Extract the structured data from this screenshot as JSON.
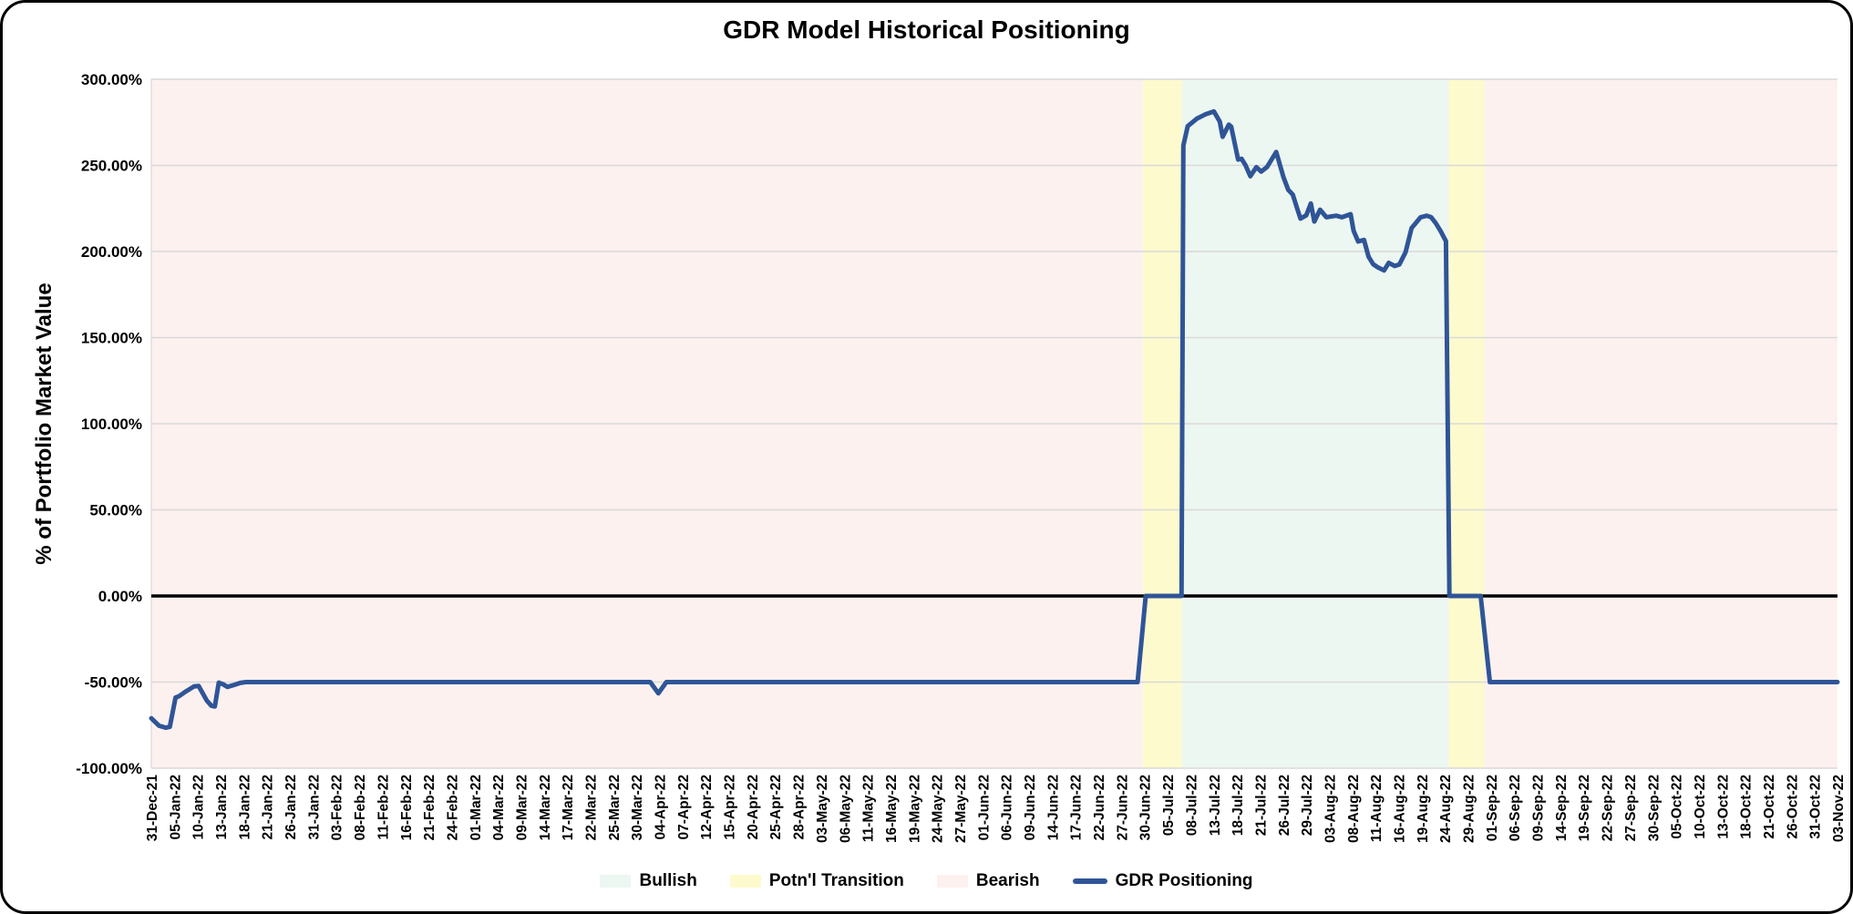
{
  "chart_data": {
    "type": "line",
    "title": "GDR Model Historical Positioning",
    "ylabel": "% of Portfolio Market Value",
    "ylim": [
      -100,
      300
    ],
    "grid": true,
    "legend_position": "bottom-center",
    "y_ticks": [
      {
        "value": 300,
        "label": "300.00%"
      },
      {
        "value": 250,
        "label": "250.00%"
      },
      {
        "value": 200,
        "label": "200.00%"
      },
      {
        "value": 150,
        "label": "150.00%"
      },
      {
        "value": 100,
        "label": "100.00%"
      },
      {
        "value": 50,
        "label": "50.00%"
      },
      {
        "value": 0,
        "label": "0.00%"
      },
      {
        "value": -50,
        "label": "-50.00%"
      },
      {
        "value": -100,
        "label": "-100.00%"
      }
    ],
    "categories": [
      "31-Dec-21",
      "05-Jan-22",
      "10-Jan-22",
      "13-Jan-22",
      "18-Jan-22",
      "21-Jan-22",
      "26-Jan-22",
      "31-Jan-22",
      "03-Feb-22",
      "08-Feb-22",
      "11-Feb-22",
      "16-Feb-22",
      "21-Feb-22",
      "24-Feb-22",
      "01-Mar-22",
      "04-Mar-22",
      "09-Mar-22",
      "14-Mar-22",
      "17-Mar-22",
      "22-Mar-22",
      "25-Mar-22",
      "30-Mar-22",
      "04-Apr-22",
      "07-Apr-22",
      "12-Apr-22",
      "15-Apr-22",
      "20-Apr-22",
      "25-Apr-22",
      "28-Apr-22",
      "03-May-22",
      "06-May-22",
      "11-May-22",
      "16-May-22",
      "19-May-22",
      "24-May-22",
      "27-May-22",
      "01-Jun-22",
      "06-Jun-22",
      "09-Jun-22",
      "14-Jun-22",
      "17-Jun-22",
      "22-Jun-22",
      "27-Jun-22",
      "30-Jun-22",
      "05-Jul-22",
      "08-Jul-22",
      "13-Jul-22",
      "18-Jul-22",
      "21-Jul-22",
      "26-Jul-22",
      "29-Jul-22",
      "03-Aug-22",
      "08-Aug-22",
      "11-Aug-22",
      "16-Aug-22",
      "19-Aug-22",
      "24-Aug-22",
      "29-Aug-22",
      "01-Sep-22",
      "06-Sep-22",
      "09-Sep-22",
      "14-Sep-22",
      "19-Sep-22",
      "22-Sep-22",
      "27-Sep-22",
      "30-Sep-22",
      "05-Oct-22",
      "10-Oct-22",
      "13-Oct-22",
      "18-Oct-22",
      "21-Oct-22",
      "26-Oct-22",
      "31-Oct-22",
      "03-Nov-22"
    ],
    "regions": [
      {
        "name": "Bearish",
        "start": 0,
        "end": 42.92,
        "color": "bearish"
      },
      {
        "name": "Potn'l Transition",
        "start": 42.92,
        "end": 44.62,
        "color": "transition"
      },
      {
        "name": "Bullish",
        "start": 44.62,
        "end": 56.17,
        "color": "bullish"
      },
      {
        "name": "Potn'l Transition",
        "start": 56.17,
        "end": 57.71,
        "color": "transition"
      },
      {
        "name": "Bearish",
        "start": 57.71,
        "end": 73,
        "color": "bearish"
      }
    ],
    "series": [
      {
        "name": "GDR Positioning",
        "color": "#2f5597",
        "points": [
          [
            0,
            -71
          ],
          [
            0.33,
            -75.3
          ],
          [
            0.63,
            -76.5
          ],
          [
            0.8,
            -76
          ],
          [
            1.05,
            -59
          ],
          [
            1.2,
            -58.2
          ],
          [
            1.5,
            -55.4
          ],
          [
            1.85,
            -52.5
          ],
          [
            2.05,
            -52.3
          ],
          [
            2.4,
            -60.7
          ],
          [
            2.6,
            -63.7
          ],
          [
            2.75,
            -64.2
          ],
          [
            2.92,
            -50.3
          ],
          [
            3.1,
            -51.2
          ],
          [
            3.3,
            -52.8
          ],
          [
            3.65,
            -51.4
          ],
          [
            3.85,
            -50.5
          ],
          [
            4.1,
            -50
          ],
          [
            21.6,
            -50
          ],
          [
            21.95,
            -56.5
          ],
          [
            22.3,
            -50
          ],
          [
            42.7,
            -50
          ],
          [
            43.05,
            0
          ],
          [
            44.6,
            0
          ],
          [
            44.68,
            261.5
          ],
          [
            44.87,
            272.8
          ],
          [
            45.27,
            277.2
          ],
          [
            45.66,
            279.8
          ],
          [
            46,
            281.3
          ],
          [
            46.26,
            275.4
          ],
          [
            46.38,
            266.6
          ],
          [
            46.65,
            273.7
          ],
          [
            46.75,
            272.5
          ],
          [
            47.05,
            253.4
          ],
          [
            47.2,
            253.8
          ],
          [
            47.38,
            249.9
          ],
          [
            47.58,
            243.7
          ],
          [
            47.84,
            249
          ],
          [
            48.05,
            246.4
          ],
          [
            48.3,
            249
          ],
          [
            48.7,
            257.8
          ],
          [
            49.02,
            242.9
          ],
          [
            49.22,
            235.8
          ],
          [
            49.42,
            233
          ],
          [
            49.6,
            225.3
          ],
          [
            49.75,
            219.1
          ],
          [
            50,
            221
          ],
          [
            50.2,
            227.9
          ],
          [
            50.35,
            217.4
          ],
          [
            50.6,
            224.3
          ],
          [
            50.87,
            219.9
          ],
          [
            51.3,
            220.8
          ],
          [
            51.55,
            219.9
          ],
          [
            51.92,
            221.7
          ],
          [
            52.05,
            212
          ],
          [
            52.25,
            205.8
          ],
          [
            52.5,
            206.7
          ],
          [
            52.7,
            197
          ],
          [
            52.9,
            192.6
          ],
          [
            53.1,
            190.8
          ],
          [
            53.37,
            189
          ],
          [
            53.57,
            193.4
          ],
          [
            53.83,
            191.6
          ],
          [
            54.03,
            192.5
          ],
          [
            54.3,
            199.6
          ],
          [
            54.56,
            213.6
          ],
          [
            54.95,
            219.9
          ],
          [
            55.22,
            220.8
          ],
          [
            55.41,
            219.9
          ],
          [
            55.61,
            216.4
          ],
          [
            55.81,
            212
          ],
          [
            56.05,
            206
          ],
          [
            56.2,
            0
          ],
          [
            57.55,
            0
          ],
          [
            57.95,
            -50
          ],
          [
            73,
            -50
          ]
        ]
      }
    ],
    "colors": {
      "bullish": "#edf7f1",
      "transition": "#fdfacd",
      "bearish": "#fdf1f0",
      "line": "#2f5597",
      "grid": "#d9d9d9",
      "zero_line": "#000000"
    },
    "legend": [
      {
        "label": "Bullish",
        "swatch": "bullish"
      },
      {
        "label": "Potn'l Transition",
        "swatch": "transition"
      },
      {
        "label": "Bearish",
        "swatch": "bearish"
      },
      {
        "label": "GDR Positioning",
        "swatch": "line"
      }
    ]
  }
}
